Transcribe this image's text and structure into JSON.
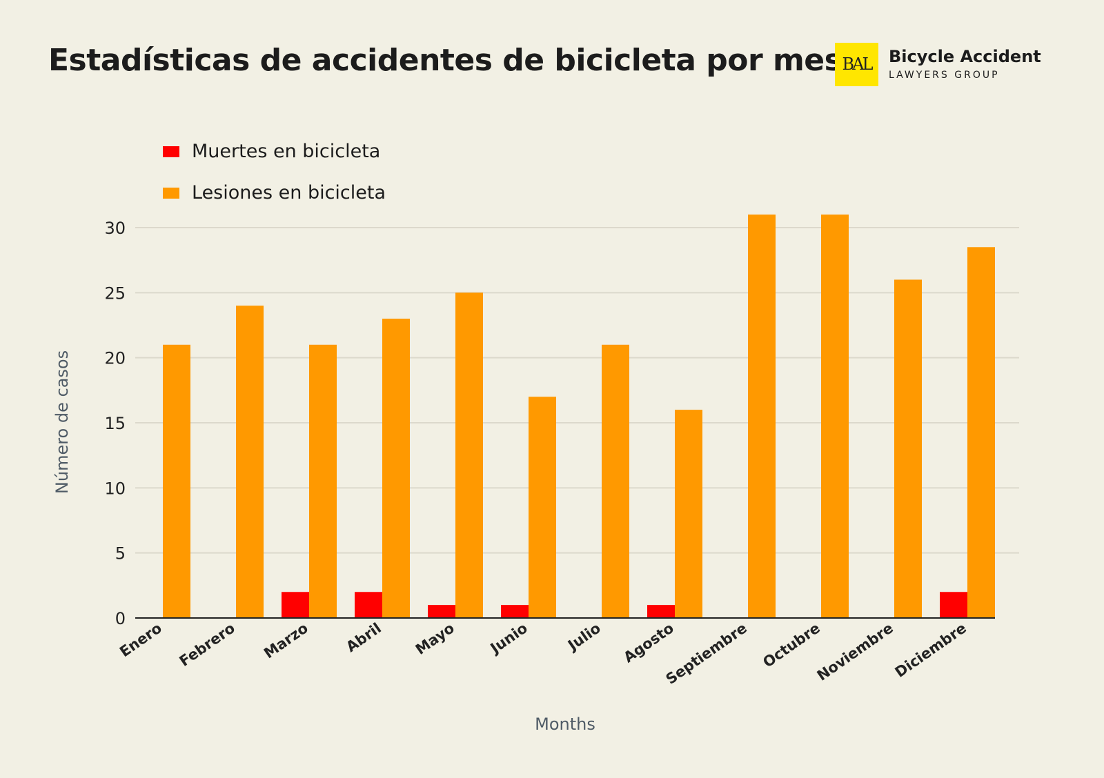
{
  "title": "Estadísticas de accidentes de bicicleta por mes",
  "logo": {
    "mark": "BAL",
    "line1": "Bicycle Accident",
    "line2": "LAWYERS GROUP",
    "color": "#ffe600"
  },
  "chart_data": {
    "type": "bar",
    "title": "Estadísticas de accidentes de bicicleta por mes",
    "xlabel": "Months",
    "ylabel": "Número de casos",
    "ylim": [
      0,
      30
    ],
    "yticks": [
      0,
      5,
      10,
      15,
      20,
      25,
      30
    ],
    "grid": true,
    "legend": "top-left",
    "categories": [
      "Enero",
      "Febrero",
      "Marzo",
      "Abril",
      "Mayo",
      "Junio",
      "Julio",
      "Agosto",
      "Septiembre",
      "Octubre",
      "Noviembre",
      "Diciembre"
    ],
    "series": [
      {
        "name": "Muertes en bicicleta",
        "color": "#ff0000",
        "values": [
          0,
          0,
          2,
          2,
          1,
          1,
          0,
          1,
          0,
          0,
          0,
          2
        ]
      },
      {
        "name": "Lesiones en bicicleta",
        "color": "#ff9900",
        "values": [
          21,
          24,
          21,
          23,
          25,
          17,
          21,
          16,
          31,
          31,
          26,
          28.5
        ]
      }
    ]
  }
}
